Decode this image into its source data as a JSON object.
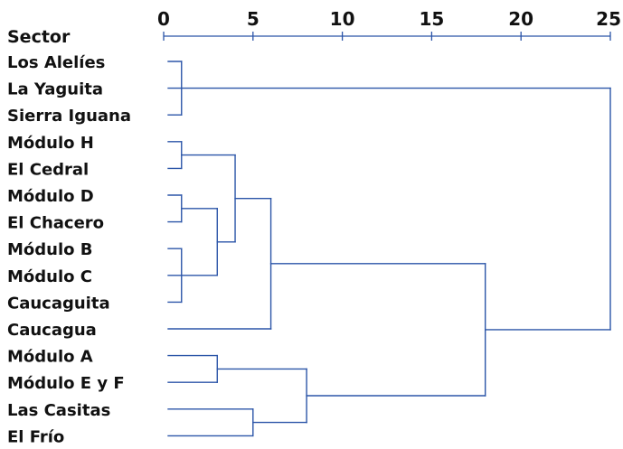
{
  "chart_data": {
    "type": "dendrogram",
    "header": "Sector",
    "axis": {
      "ticks": [
        0,
        5,
        10,
        15,
        20,
        25
      ],
      "range": [
        0,
        25
      ]
    },
    "leaves": [
      "Los Alelíes",
      "La Yaguita",
      "Sierra Iguana",
      "Módulo H",
      "El Cedral",
      "Módulo D",
      "El Chacero",
      "Módulo B",
      "Módulo C",
      "Caucaguita",
      "Caucagua",
      "Módulo A",
      "Módulo E y F",
      "Las Casitas",
      "El Frío"
    ],
    "merges": [
      {
        "id": "c1",
        "children": [
          "L0",
          "L1",
          "L2"
        ],
        "height": 1
      },
      {
        "id": "c2",
        "children": [
          "L3",
          "L4"
        ],
        "height": 1
      },
      {
        "id": "c3",
        "children": [
          "L5",
          "L6"
        ],
        "height": 1
      },
      {
        "id": "c4",
        "children": [
          "L7",
          "L8",
          "L9"
        ],
        "height": 1
      },
      {
        "id": "c5",
        "children": [
          "c3",
          "c4"
        ],
        "height": 3
      },
      {
        "id": "c6",
        "children": [
          "c2",
          "c5"
        ],
        "height": 4
      },
      {
        "id": "c7",
        "children": [
          "c6",
          "L10"
        ],
        "height": 6
      },
      {
        "id": "c8",
        "children": [
          "L11",
          "L12"
        ],
        "height": 3
      },
      {
        "id": "c9",
        "children": [
          "L13",
          "L14"
        ],
        "height": 5
      },
      {
        "id": "c10",
        "children": [
          "c8",
          "c9"
        ],
        "height": 8
      },
      {
        "id": "c11",
        "children": [
          "c7",
          "c10"
        ],
        "height": 18
      },
      {
        "id": "c12",
        "children": [
          "c1",
          "c11"
        ],
        "height": 25
      }
    ],
    "colors": {
      "line": "#2b55a8",
      "text": "#111111"
    }
  }
}
